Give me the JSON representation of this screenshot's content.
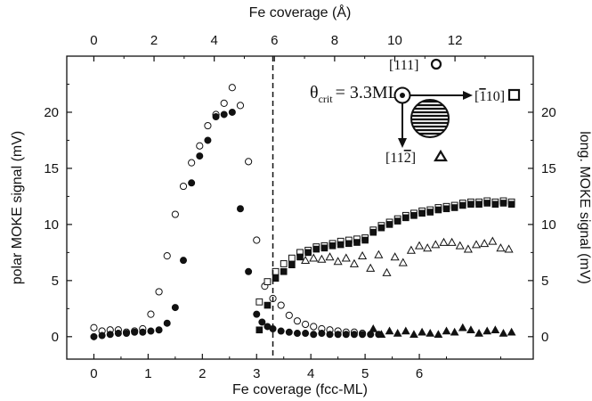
{
  "chart_data": {
    "type": "scatter",
    "title": "",
    "xlabel": "Fe coverage (fcc-ML)",
    "x2label": "Fe coverage (Å)",
    "ylabel": "polar MOKE signal (mV)",
    "y2label": "long. MOKE signal (mV)",
    "xlim": [
      -0.5,
      8.1
    ],
    "ylim": [
      -2,
      25
    ],
    "x2lim": [
      -0.9,
      14.6
    ],
    "xticks": [
      "0",
      "1",
      "2",
      "3",
      "4",
      "5",
      "6"
    ],
    "x2ticks": [
      "0",
      "2",
      "4",
      "6",
      "8",
      "10",
      "12"
    ],
    "yticks": [
      "0",
      "5",
      "10",
      "15",
      "20"
    ],
    "y2ticks": [
      "0",
      "5",
      "10",
      "15",
      "20"
    ],
    "grid": false,
    "legend": "none",
    "annotations": {
      "critical_line_x": 3.3,
      "theta_symbol": "θ",
      "theta_sub": "crit",
      "theta_value": "= 3.3ML",
      "dir_111": "[111]",
      "dir_110_open": "[",
      "dir_110_bar": "1",
      "dir_110_close": "10]",
      "dir_112_open": "[11",
      "dir_112_bar": "2",
      "dir_112_close": "]"
    },
    "series": [
      {
        "marker": "circle-open",
        "x": [
          0.0,
          0.15,
          0.3,
          0.45,
          0.6,
          0.75,
          0.9,
          1.05,
          1.2,
          1.35,
          1.5,
          1.65,
          1.8,
          1.95,
          2.1,
          2.25,
          2.4,
          2.55,
          2.7,
          2.85,
          3.0,
          3.15,
          3.3,
          3.45,
          3.6,
          3.75,
          3.9,
          4.05,
          4.2,
          4.35,
          4.5,
          4.65,
          4.8,
          4.95
        ],
        "y": [
          0.8,
          0.5,
          0.6,
          0.6,
          0.4,
          0.5,
          0.7,
          2.0,
          4.0,
          7.2,
          10.9,
          13.4,
          15.5,
          17.0,
          18.8,
          19.8,
          20.8,
          22.2,
          20.6,
          15.6,
          8.6,
          4.5,
          3.4,
          2.8,
          1.9,
          1.4,
          1.1,
          0.9,
          0.7,
          0.6,
          0.5,
          0.4,
          0.4,
          0.3
        ]
      },
      {
        "marker": "circle-filled",
        "x": [
          0.0,
          0.15,
          0.3,
          0.45,
          0.6,
          0.75,
          0.9,
          1.05,
          1.2,
          1.35,
          1.5,
          1.65,
          1.8,
          1.95,
          2.1,
          2.25,
          2.4,
          2.55,
          2.7,
          2.85,
          3.0,
          3.1,
          3.2,
          3.3,
          3.45,
          3.6,
          3.75,
          3.9,
          4.05,
          4.2,
          4.35,
          4.5,
          4.65,
          4.8,
          4.95,
          5.1,
          5.25
        ],
        "y": [
          0.0,
          0.1,
          0.2,
          0.3,
          0.3,
          0.4,
          0.4,
          0.5,
          0.6,
          1.2,
          2.6,
          6.8,
          13.7,
          16.1,
          17.5,
          19.6,
          19.8,
          20.0,
          11.4,
          5.8,
          2.0,
          1.3,
          0.9,
          0.7,
          0.5,
          0.4,
          0.3,
          0.3,
          0.2,
          0.3,
          0.2,
          0.2,
          0.2,
          0.2,
          0.2,
          0.2,
          0.2
        ]
      },
      {
        "marker": "square-open",
        "x": [
          3.05,
          3.2,
          3.35,
          3.5,
          3.65,
          3.8,
          3.95,
          4.1,
          4.25,
          4.4,
          4.55,
          4.7,
          4.85,
          5.0,
          5.15,
          5.3,
          5.45,
          5.6,
          5.75,
          5.9,
          6.05,
          6.2,
          6.35,
          6.5,
          6.65,
          6.8,
          6.95,
          7.1,
          7.25,
          7.4,
          7.55,
          7.7
        ],
        "y": [
          3.1,
          4.9,
          5.8,
          6.5,
          7.0,
          7.5,
          7.7,
          8.0,
          8.1,
          8.3,
          8.5,
          8.6,
          8.7,
          8.8,
          9.5,
          9.9,
          10.2,
          10.5,
          10.8,
          11.0,
          11.2,
          11.3,
          11.5,
          11.6,
          11.7,
          11.9,
          12.0,
          12.0,
          12.1,
          12.0,
          12.1,
          12.0
        ]
      },
      {
        "marker": "square-filled",
        "x": [
          3.05,
          3.2,
          3.35,
          3.5,
          3.65,
          3.8,
          3.95,
          4.1,
          4.25,
          4.4,
          4.55,
          4.7,
          4.85,
          5.0,
          5.15,
          5.3,
          5.45,
          5.6,
          5.75,
          5.9,
          6.05,
          6.2,
          6.35,
          6.5,
          6.65,
          6.8,
          6.95,
          7.1,
          7.25,
          7.4,
          7.55,
          7.7
        ],
        "y": [
          0.6,
          2.8,
          5.2,
          5.8,
          6.4,
          7.1,
          7.5,
          7.8,
          7.9,
          8.1,
          8.2,
          8.3,
          8.4,
          8.6,
          9.3,
          9.7,
          10.0,
          10.3,
          10.6,
          10.8,
          11.0,
          11.1,
          11.3,
          11.4,
          11.5,
          11.7,
          11.8,
          11.8,
          11.9,
          11.8,
          11.9,
          11.8
        ]
      },
      {
        "marker": "triangle-open",
        "x": [
          3.9,
          4.05,
          4.2,
          4.35,
          4.5,
          4.65,
          4.8,
          4.95,
          5.1,
          5.25,
          5.4,
          5.55,
          5.7,
          5.85,
          6.0,
          6.15,
          6.3,
          6.45,
          6.6,
          6.75,
          6.9,
          7.05,
          7.2,
          7.35,
          7.5,
          7.65
        ],
        "y": [
          6.8,
          7.0,
          6.9,
          7.1,
          6.7,
          7.0,
          6.5,
          7.2,
          6.1,
          7.3,
          5.7,
          7.1,
          6.6,
          7.7,
          8.1,
          7.9,
          8.2,
          8.4,
          8.4,
          8.1,
          7.8,
          8.2,
          8.3,
          8.5,
          7.9,
          7.8
        ]
      },
      {
        "marker": "triangle-filled",
        "x": [
          5.15,
          5.3,
          5.45,
          5.6,
          5.75,
          5.9,
          6.05,
          6.2,
          6.35,
          6.5,
          6.65,
          6.8,
          6.95,
          7.1,
          7.25,
          7.4,
          7.55,
          7.7
        ],
        "y": [
          0.7,
          0.2,
          0.5,
          0.3,
          0.5,
          0.2,
          0.4,
          0.3,
          0.2,
          0.5,
          0.4,
          0.8,
          0.6,
          0.3,
          0.5,
          0.6,
          0.3,
          0.4
        ]
      }
    ]
  }
}
